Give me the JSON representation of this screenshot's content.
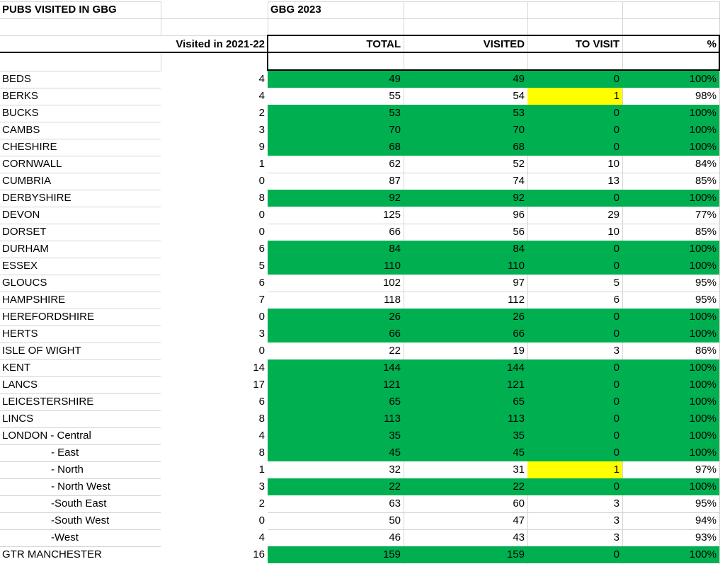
{
  "sheet": {
    "title": "PUBS VISITED IN GBG",
    "guide_label": "GBG 2023",
    "header": {
      "prev": "Visited in 2021-22",
      "total": "TOTAL",
      "visited": "VISITED",
      "to_visit": "TO VISIT",
      "percent": "%"
    },
    "colors": {
      "complete_fill": "#00B050",
      "attention_fill": "#FFFF00",
      "gridline": "#D4D4D4",
      "border": "#000000",
      "text": "#000000",
      "background": "#FFFFFF"
    },
    "rows": [
      {
        "name": "BEDS",
        "indent": false,
        "prev": 4,
        "total": 49,
        "visited": 49,
        "to_visit": 0,
        "percent": "100%",
        "fill": "complete",
        "to_visit_fill": null
      },
      {
        "name": "BERKS",
        "indent": false,
        "prev": 4,
        "total": 55,
        "visited": 54,
        "to_visit": 1,
        "percent": "98%",
        "fill": "none",
        "to_visit_fill": "attention"
      },
      {
        "name": "BUCKS",
        "indent": false,
        "prev": 2,
        "total": 53,
        "visited": 53,
        "to_visit": 0,
        "percent": "100%",
        "fill": "complete",
        "to_visit_fill": null
      },
      {
        "name": "CAMBS",
        "indent": false,
        "prev": 3,
        "total": 70,
        "visited": 70,
        "to_visit": 0,
        "percent": "100%",
        "fill": "complete",
        "to_visit_fill": null
      },
      {
        "name": "CHESHIRE",
        "indent": false,
        "prev": 9,
        "total": 68,
        "visited": 68,
        "to_visit": 0,
        "percent": "100%",
        "fill": "complete",
        "to_visit_fill": null
      },
      {
        "name": "CORNWALL",
        "indent": false,
        "prev": 1,
        "total": 62,
        "visited": 52,
        "to_visit": 10,
        "percent": "84%",
        "fill": "none",
        "to_visit_fill": null
      },
      {
        "name": "CUMBRIA",
        "indent": false,
        "prev": 0,
        "total": 87,
        "visited": 74,
        "to_visit": 13,
        "percent": "85%",
        "fill": "none",
        "to_visit_fill": null
      },
      {
        "name": "DERBYSHIRE",
        "indent": false,
        "prev": 8,
        "total": 92,
        "visited": 92,
        "to_visit": 0,
        "percent": "100%",
        "fill": "complete",
        "to_visit_fill": null
      },
      {
        "name": "DEVON",
        "indent": false,
        "prev": 0,
        "total": 125,
        "visited": 96,
        "to_visit": 29,
        "percent": "77%",
        "fill": "none",
        "to_visit_fill": null
      },
      {
        "name": "DORSET",
        "indent": false,
        "prev": 0,
        "total": 66,
        "visited": 56,
        "to_visit": 10,
        "percent": "85%",
        "fill": "none",
        "to_visit_fill": null
      },
      {
        "name": "DURHAM",
        "indent": false,
        "prev": 6,
        "total": 84,
        "visited": 84,
        "to_visit": 0,
        "percent": "100%",
        "fill": "complete",
        "to_visit_fill": null
      },
      {
        "name": "ESSEX",
        "indent": false,
        "prev": 5,
        "total": 110,
        "visited": 110,
        "to_visit": 0,
        "percent": "100%",
        "fill": "complete",
        "to_visit_fill": null
      },
      {
        "name": "GLOUCS",
        "indent": false,
        "prev": 6,
        "total": 102,
        "visited": 97,
        "to_visit": 5,
        "percent": "95%",
        "fill": "none",
        "to_visit_fill": null
      },
      {
        "name": "HAMPSHIRE",
        "indent": false,
        "prev": 7,
        "total": 118,
        "visited": 112,
        "to_visit": 6,
        "percent": "95%",
        "fill": "none",
        "to_visit_fill": null
      },
      {
        "name": "HEREFORDSHIRE",
        "indent": false,
        "prev": 0,
        "total": 26,
        "visited": 26,
        "to_visit": 0,
        "percent": "100%",
        "fill": "complete",
        "to_visit_fill": null
      },
      {
        "name": "HERTS",
        "indent": false,
        "prev": 3,
        "total": 66,
        "visited": 66,
        "to_visit": 0,
        "percent": "100%",
        "fill": "complete",
        "to_visit_fill": null
      },
      {
        "name": "ISLE OF WIGHT",
        "indent": false,
        "prev": 0,
        "total": 22,
        "visited": 19,
        "to_visit": 3,
        "percent": "86%",
        "fill": "none",
        "to_visit_fill": null
      },
      {
        "name": "KENT",
        "indent": false,
        "prev": 14,
        "total": 144,
        "visited": 144,
        "to_visit": 0,
        "percent": "100%",
        "fill": "complete",
        "to_visit_fill": null
      },
      {
        "name": "LANCS",
        "indent": false,
        "prev": 17,
        "total": 121,
        "visited": 121,
        "to_visit": 0,
        "percent": "100%",
        "fill": "complete",
        "to_visit_fill": null
      },
      {
        "name": "LEICESTERSHIRE",
        "indent": false,
        "prev": 6,
        "total": 65,
        "visited": 65,
        "to_visit": 0,
        "percent": "100%",
        "fill": "complete",
        "to_visit_fill": null
      },
      {
        "name": "LINCS",
        "indent": false,
        "prev": 8,
        "total": 113,
        "visited": 113,
        "to_visit": 0,
        "percent": "100%",
        "fill": "complete",
        "to_visit_fill": null
      },
      {
        "name": "LONDON - Central",
        "indent": false,
        "prev": 4,
        "total": 35,
        "visited": 35,
        "to_visit": 0,
        "percent": "100%",
        "fill": "complete",
        "to_visit_fill": null
      },
      {
        "name": "- East",
        "indent": true,
        "prev": 8,
        "total": 45,
        "visited": 45,
        "to_visit": 0,
        "percent": "100%",
        "fill": "complete",
        "to_visit_fill": null
      },
      {
        "name": "- North",
        "indent": true,
        "prev": 1,
        "total": 32,
        "visited": 31,
        "to_visit": 1,
        "percent": "97%",
        "fill": "none",
        "to_visit_fill": "attention"
      },
      {
        "name": "- North West",
        "indent": true,
        "prev": 3,
        "total": 22,
        "visited": 22,
        "to_visit": 0,
        "percent": "100%",
        "fill": "complete",
        "to_visit_fill": null
      },
      {
        "name": "-South East",
        "indent": true,
        "prev": 2,
        "total": 63,
        "visited": 60,
        "to_visit": 3,
        "percent": "95%",
        "fill": "none",
        "to_visit_fill": null
      },
      {
        "name": "-South West",
        "indent": true,
        "prev": 0,
        "total": 50,
        "visited": 47,
        "to_visit": 3,
        "percent": "94%",
        "fill": "none",
        "to_visit_fill": null
      },
      {
        "name": "-West",
        "indent": true,
        "prev": 4,
        "total": 46,
        "visited": 43,
        "to_visit": 3,
        "percent": "93%",
        "fill": "none",
        "to_visit_fill": null
      },
      {
        "name": "GTR MANCHESTER",
        "indent": false,
        "prev": 16,
        "total": 159,
        "visited": 159,
        "to_visit": 0,
        "percent": "100%",
        "fill": "complete",
        "to_visit_fill": null
      }
    ]
  }
}
